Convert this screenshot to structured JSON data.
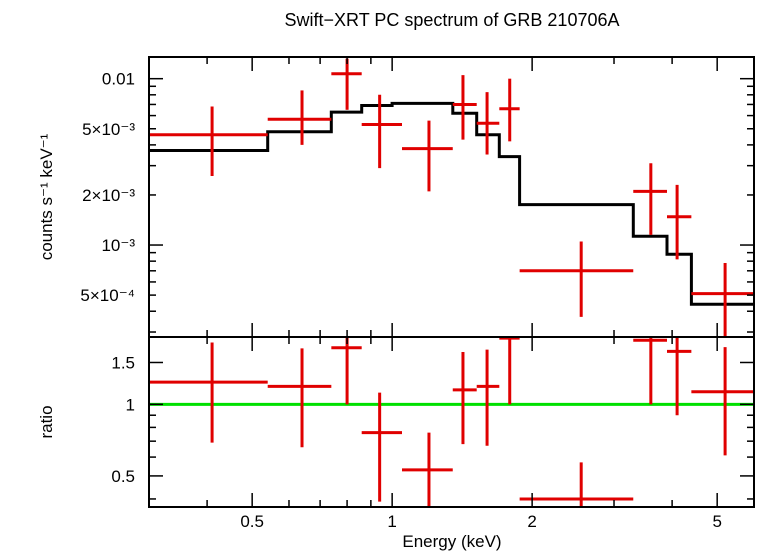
{
  "chart_data": [
    {
      "type": "line",
      "title": "Swift−XRT PC spectrum of GRB 210706A",
      "xlabel": "",
      "ylabel": "counts s⁻¹ keV⁻¹",
      "xscale": "log",
      "yscale": "log",
      "xlim": [
        0.3,
        6.0
      ],
      "ylim": [
        0.00028,
        0.0135
      ],
      "y_tick_labels": [
        {
          "value": 0.01,
          "label": "0.01"
        },
        {
          "value": 0.005,
          "label": "5×10⁻³"
        },
        {
          "value": 0.002,
          "label": "2×10⁻³"
        },
        {
          "value": 0.001,
          "label": "10⁻³"
        },
        {
          "value": 0.0005,
          "label": "5×10⁻⁴"
        }
      ],
      "series": [
        {
          "kind": "data",
          "color": "#e00000",
          "points": [
            {
              "x": 0.41,
              "xlo": 0.3,
              "xhi": 0.54,
              "y": 0.0046,
              "ylo": 0.0026,
              "yhi": 0.0068
            },
            {
              "x": 0.64,
              "xlo": 0.54,
              "xhi": 0.74,
              "y": 0.0057,
              "ylo": 0.004,
              "yhi": 0.0085
            },
            {
              "x": 0.8,
              "xlo": 0.74,
              "xhi": 0.86,
              "y": 0.0107,
              "ylo": 0.0065,
              "yhi": 0.0132
            },
            {
              "x": 0.94,
              "xlo": 0.86,
              "xhi": 1.05,
              "y": 0.0053,
              "ylo": 0.0029,
              "yhi": 0.008
            },
            {
              "x": 1.2,
              "xlo": 1.05,
              "xhi": 1.35,
              "y": 0.0038,
              "ylo": 0.0021,
              "yhi": 0.0056
            },
            {
              "x": 1.42,
              "xlo": 1.35,
              "xhi": 1.52,
              "y": 0.007,
              "ylo": 0.0043,
              "yhi": 0.0105
            },
            {
              "x": 1.6,
              "xlo": 1.52,
              "xhi": 1.7,
              "y": 0.0054,
              "ylo": 0.0035,
              "yhi": 0.0083
            },
            {
              "x": 1.79,
              "xlo": 1.7,
              "xhi": 1.88,
              "y": 0.0066,
              "ylo": 0.0042,
              "yhi": 0.01
            },
            {
              "x": 2.55,
              "xlo": 1.88,
              "xhi": 3.3,
              "y": 0.0007,
              "ylo": 0.00037,
              "yhi": 0.00105
            },
            {
              "x": 3.6,
              "xlo": 3.3,
              "xhi": 3.9,
              "y": 0.0021,
              "ylo": 0.00115,
              "yhi": 0.0031
            },
            {
              "x": 4.1,
              "xlo": 3.9,
              "xhi": 4.4,
              "y": 0.00148,
              "ylo": 0.00082,
              "yhi": 0.0023
            },
            {
              "x": 5.2,
              "xlo": 4.4,
              "xhi": 6.0,
              "y": 0.00051,
              "ylo": 0.00028,
              "yhi": 0.00078
            }
          ]
        },
        {
          "kind": "model",
          "color": "#000000",
          "steps": [
            {
              "xlo": 0.3,
              "xhi": 0.54,
              "y": 0.0037
            },
            {
              "xlo": 0.54,
              "xhi": 0.74,
              "y": 0.0048
            },
            {
              "xlo": 0.74,
              "xhi": 0.86,
              "y": 0.0063
            },
            {
              "xlo": 0.86,
              "xhi": 1.0,
              "y": 0.0069
            },
            {
              "xlo": 1.0,
              "xhi": 1.35,
              "y": 0.0071
            },
            {
              "xlo": 1.35,
              "xhi": 1.52,
              "y": 0.0062
            },
            {
              "xlo": 1.52,
              "xhi": 1.7,
              "y": 0.0046
            },
            {
              "xlo": 1.7,
              "xhi": 1.88,
              "y": 0.0034
            },
            {
              "xlo": 1.88,
              "xhi": 3.3,
              "y": 0.00175
            },
            {
              "xlo": 3.3,
              "xhi": 3.9,
              "y": 0.00113
            },
            {
              "xlo": 3.9,
              "xhi": 4.4,
              "y": 0.00088
            },
            {
              "xlo": 4.4,
              "xhi": 6.0,
              "y": 0.00044
            }
          ]
        }
      ]
    },
    {
      "type": "scatter",
      "title": "",
      "xlabel": "Energy (keV)",
      "ylabel": "ratio",
      "xscale": "log",
      "yscale": "log",
      "xlim": [
        0.3,
        6.0
      ],
      "ylim": [
        0.37,
        1.92
      ],
      "x_tick_labels": [
        {
          "value": 0.5,
          "label": "0.5"
        },
        {
          "value": 1,
          "label": "1"
        },
        {
          "value": 2,
          "label": "2"
        },
        {
          "value": 5,
          "label": "5"
        }
      ],
      "y_tick_labels": [
        {
          "value": 0.5,
          "label": "0.5"
        },
        {
          "value": 1,
          "label": "1"
        },
        {
          "value": 1.5,
          "label": "1.5"
        }
      ],
      "reference_line": {
        "y": 1,
        "color": "#00e000"
      },
      "series": [
        {
          "kind": "data",
          "color": "#e00000",
          "points": [
            {
              "x": 0.41,
              "xlo": 0.3,
              "xhi": 0.54,
              "y": 1.24,
              "ylo": 0.69,
              "yhi": 1.82
            },
            {
              "x": 0.64,
              "xlo": 0.54,
              "xhi": 0.74,
              "y": 1.19,
              "ylo": 0.66,
              "yhi": 1.72
            },
            {
              "x": 0.8,
              "xlo": 0.74,
              "xhi": 0.86,
              "y": 1.73,
              "ylo": 1.0,
              "yhi": 1.92
            },
            {
              "x": 0.94,
              "xlo": 0.86,
              "xhi": 1.05,
              "y": 0.76,
              "ylo": 0.39,
              "yhi": 1.12
            },
            {
              "x": 1.2,
              "xlo": 1.05,
              "xhi": 1.35,
              "y": 0.53,
              "ylo": 0.37,
              "yhi": 0.76
            },
            {
              "x": 1.42,
              "xlo": 1.35,
              "xhi": 1.52,
              "y": 1.15,
              "ylo": 0.68,
              "yhi": 1.66
            },
            {
              "x": 1.6,
              "xlo": 1.52,
              "xhi": 1.7,
              "y": 1.19,
              "ylo": 0.67,
              "yhi": 1.7
            },
            {
              "x": 1.79,
              "xlo": 1.7,
              "xhi": 1.88,
              "y": 1.9,
              "ylo": 1.0,
              "yhi": 1.92
            },
            {
              "x": 2.55,
              "xlo": 1.88,
              "xhi": 3.3,
              "y": 0.4,
              "ylo": 0.37,
              "yhi": 0.57
            },
            {
              "x": 3.6,
              "xlo": 3.3,
              "xhi": 3.9,
              "y": 1.86,
              "ylo": 1.0,
              "yhi": 1.92
            },
            {
              "x": 4.1,
              "xlo": 3.9,
              "xhi": 4.4,
              "y": 1.67,
              "ylo": 0.9,
              "yhi": 1.92
            },
            {
              "x": 5.2,
              "xlo": 4.4,
              "xhi": 6.0,
              "y": 1.13,
              "ylo": 0.61,
              "yhi": 1.74
            }
          ]
        }
      ]
    }
  ]
}
